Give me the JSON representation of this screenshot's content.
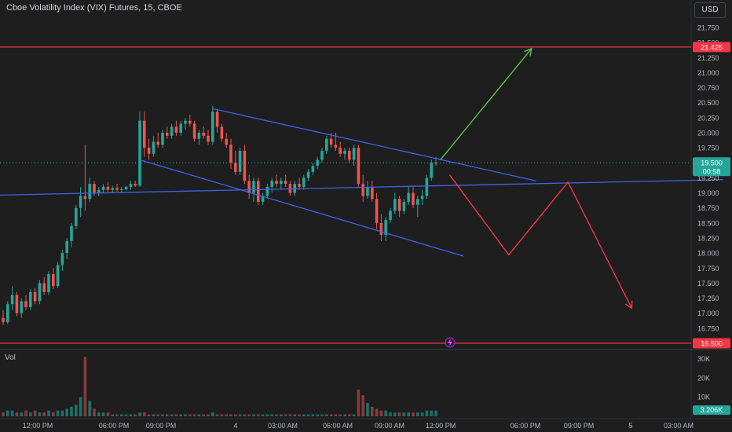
{
  "header": {
    "title": "Cboe Volatility Index (VIX) Futures, 15, CBOE",
    "currency_button": "USD",
    "volume_label": "Vol"
  },
  "colors": {
    "background": "#1e1e1e",
    "bull": "#26a69a",
    "bear": "#ef5350",
    "bull_volume": "#1f6f69",
    "bear_volume": "#8a3a3a",
    "trendline": "#3d63e8",
    "level_line": "#f23645",
    "arrow_up": "#5fbf4d",
    "arrow_down": "#f23645",
    "grid": "#2a2a2a",
    "axis_text": "#b2b5be"
  },
  "chart_data": [
    {
      "type": "candlestick",
      "title": "Cboe Volatility Index (VIX) Futures, 15, CBOE",
      "y_ticks": [
        "21.750",
        "21.500",
        "21.250",
        "21.000",
        "20.750",
        "20.500",
        "20.250",
        "20.000",
        "19.750",
        "19.500",
        "19.250",
        "19.000",
        "18.750",
        "18.500",
        "18.250",
        "18.000",
        "17.750",
        "17.500",
        "17.250",
        "17.000",
        "16.750"
      ],
      "ylim": [
        16.5,
        21.75
      ],
      "x_tick_labels": [
        "12:00 PM",
        "06:00 PM",
        "09:00 PM",
        "4",
        "03:00 AM",
        "06:00 AM",
        "09:00 AM",
        "12:00 PM",
        "06:00 PM",
        "09:00 PM",
        "5",
        "03:00 AM"
      ],
      "price_labels": {
        "upper_level": "21.425",
        "current_price": "19.500",
        "countdown": "00:58",
        "lower_level": "16.500"
      },
      "horizontal_levels": [
        21.425,
        16.5
      ],
      "current_price": 19.5,
      "candles": [
        {
          "o": 16.92,
          "h": 17.05,
          "l": 16.8,
          "c": 16.85
        },
        {
          "o": 16.85,
          "h": 17.2,
          "l": 16.82,
          "c": 17.15
        },
        {
          "o": 17.15,
          "h": 17.45,
          "l": 17.05,
          "c": 17.3
        },
        {
          "o": 17.3,
          "h": 17.35,
          "l": 16.95,
          "c": 17.0
        },
        {
          "o": 17.0,
          "h": 17.25,
          "l": 16.92,
          "c": 17.2
        },
        {
          "o": 17.2,
          "h": 17.3,
          "l": 17.05,
          "c": 17.1
        },
        {
          "o": 17.1,
          "h": 17.4,
          "l": 17.05,
          "c": 17.35
        },
        {
          "o": 17.35,
          "h": 17.42,
          "l": 17.15,
          "c": 17.2
        },
        {
          "o": 17.2,
          "h": 17.55,
          "l": 17.15,
          "c": 17.5
        },
        {
          "o": 17.5,
          "h": 17.6,
          "l": 17.3,
          "c": 17.35
        },
        {
          "o": 17.35,
          "h": 17.7,
          "l": 17.3,
          "c": 17.65
        },
        {
          "o": 17.65,
          "h": 17.75,
          "l": 17.4,
          "c": 17.45
        },
        {
          "o": 17.45,
          "h": 17.85,
          "l": 17.42,
          "c": 17.8
        },
        {
          "o": 17.8,
          "h": 18.05,
          "l": 17.7,
          "c": 18.0
        },
        {
          "o": 18.0,
          "h": 18.25,
          "l": 17.9,
          "c": 18.2
        },
        {
          "o": 18.2,
          "h": 18.5,
          "l": 18.1,
          "c": 18.45
        },
        {
          "o": 18.45,
          "h": 18.8,
          "l": 18.4,
          "c": 18.75
        },
        {
          "o": 18.75,
          "h": 19.1,
          "l": 18.6,
          "c": 18.95
        },
        {
          "o": 18.95,
          "h": 19.8,
          "l": 18.7,
          "c": 18.9
        },
        {
          "o": 18.9,
          "h": 19.25,
          "l": 18.85,
          "c": 19.15
        },
        {
          "o": 19.15,
          "h": 19.2,
          "l": 18.95,
          "c": 19.0
        },
        {
          "o": 19.0,
          "h": 19.1,
          "l": 18.95,
          "c": 19.05
        },
        {
          "o": 19.05,
          "h": 19.15,
          "l": 19.0,
          "c": 19.1
        },
        {
          "o": 19.1,
          "h": 19.18,
          "l": 19.02,
          "c": 19.05
        },
        {
          "o": 19.05,
          "h": 19.12,
          "l": 19.0,
          "c": 19.08
        },
        {
          "o": 19.08,
          "h": 19.15,
          "l": 19.02,
          "c": 19.05
        },
        {
          "o": 19.05,
          "h": 19.1,
          "l": 19.0,
          "c": 19.06
        },
        {
          "o": 19.06,
          "h": 19.12,
          "l": 19.04,
          "c": 19.1
        },
        {
          "o": 19.1,
          "h": 19.2,
          "l": 19.05,
          "c": 19.15
        },
        {
          "o": 19.15,
          "h": 19.2,
          "l": 19.1,
          "c": 19.12
        },
        {
          "o": 19.12,
          "h": 20.35,
          "l": 19.1,
          "c": 20.2
        },
        {
          "o": 20.2,
          "h": 20.35,
          "l": 19.6,
          "c": 19.75
        },
        {
          "o": 19.75,
          "h": 19.9,
          "l": 19.55,
          "c": 19.65
        },
        {
          "o": 19.65,
          "h": 19.95,
          "l": 19.6,
          "c": 19.85
        },
        {
          "o": 19.85,
          "h": 20.0,
          "l": 19.75,
          "c": 19.8
        },
        {
          "o": 19.8,
          "h": 20.05,
          "l": 19.75,
          "c": 20.0
        },
        {
          "o": 20.0,
          "h": 20.1,
          "l": 19.9,
          "c": 19.95
        },
        {
          "o": 19.95,
          "h": 20.15,
          "l": 19.9,
          "c": 20.1
        },
        {
          "o": 20.1,
          "h": 20.2,
          "l": 19.95,
          "c": 20.0
        },
        {
          "o": 20.0,
          "h": 20.2,
          "l": 19.95,
          "c": 20.15
        },
        {
          "o": 20.15,
          "h": 20.25,
          "l": 20.05,
          "c": 20.2
        },
        {
          "o": 20.2,
          "h": 20.3,
          "l": 20.1,
          "c": 20.15
        },
        {
          "o": 20.15,
          "h": 20.2,
          "l": 19.85,
          "c": 19.9
        },
        {
          "o": 19.9,
          "h": 20.05,
          "l": 19.8,
          "c": 20.0
        },
        {
          "o": 20.0,
          "h": 20.1,
          "l": 19.9,
          "c": 19.95
        },
        {
          "o": 19.95,
          "h": 20.05,
          "l": 19.8,
          "c": 19.85
        },
        {
          "o": 19.85,
          "h": 20.45,
          "l": 19.8,
          "c": 20.35
        },
        {
          "o": 20.35,
          "h": 20.4,
          "l": 20.0,
          "c": 20.1
        },
        {
          "o": 20.1,
          "h": 20.15,
          "l": 19.85,
          "c": 19.9
        },
        {
          "o": 19.9,
          "h": 20.0,
          "l": 19.75,
          "c": 19.8
        },
        {
          "o": 19.8,
          "h": 19.9,
          "l": 19.4,
          "c": 19.5
        },
        {
          "o": 19.5,
          "h": 19.7,
          "l": 19.3,
          "c": 19.35
        },
        {
          "o": 19.35,
          "h": 19.75,
          "l": 19.3,
          "c": 19.7
        },
        {
          "o": 19.7,
          "h": 19.8,
          "l": 19.15,
          "c": 19.2
        },
        {
          "o": 19.2,
          "h": 19.3,
          "l": 18.9,
          "c": 19.0
        },
        {
          "o": 19.0,
          "h": 19.25,
          "l": 18.85,
          "c": 19.2
        },
        {
          "o": 19.2,
          "h": 19.25,
          "l": 18.8,
          "c": 18.85
        },
        {
          "o": 18.85,
          "h": 19.0,
          "l": 18.8,
          "c": 18.95
        },
        {
          "o": 18.95,
          "h": 19.15,
          "l": 18.9,
          "c": 19.1
        },
        {
          "o": 19.1,
          "h": 19.25,
          "l": 19.0,
          "c": 19.2
        },
        {
          "o": 19.2,
          "h": 19.3,
          "l": 19.1,
          "c": 19.15
        },
        {
          "o": 19.15,
          "h": 19.25,
          "l": 19.05,
          "c": 19.2
        },
        {
          "o": 19.2,
          "h": 19.3,
          "l": 19.1,
          "c": 19.15
        },
        {
          "o": 19.15,
          "h": 19.2,
          "l": 18.95,
          "c": 19.0
        },
        {
          "o": 19.0,
          "h": 19.2,
          "l": 18.95,
          "c": 19.15
        },
        {
          "o": 19.15,
          "h": 19.25,
          "l": 19.05,
          "c": 19.1
        },
        {
          "o": 19.1,
          "h": 19.3,
          "l": 19.05,
          "c": 19.25
        },
        {
          "o": 19.25,
          "h": 19.4,
          "l": 19.2,
          "c": 19.35
        },
        {
          "o": 19.35,
          "h": 19.5,
          "l": 19.3,
          "c": 19.45
        },
        {
          "o": 19.45,
          "h": 19.6,
          "l": 19.4,
          "c": 19.55
        },
        {
          "o": 19.55,
          "h": 19.75,
          "l": 19.5,
          "c": 19.7
        },
        {
          "o": 19.7,
          "h": 19.95,
          "l": 19.65,
          "c": 19.9
        },
        {
          "o": 19.9,
          "h": 20.0,
          "l": 19.75,
          "c": 19.8
        },
        {
          "o": 19.8,
          "h": 20.0,
          "l": 19.7,
          "c": 19.75
        },
        {
          "o": 19.75,
          "h": 19.85,
          "l": 19.6,
          "c": 19.65
        },
        {
          "o": 19.65,
          "h": 19.75,
          "l": 19.55,
          "c": 19.7
        },
        {
          "o": 19.7,
          "h": 19.75,
          "l": 19.5,
          "c": 19.55
        },
        {
          "o": 19.55,
          "h": 19.8,
          "l": 19.45,
          "c": 19.75
        },
        {
          "o": 19.75,
          "h": 19.8,
          "l": 19.1,
          "c": 19.15
        },
        {
          "o": 19.15,
          "h": 19.3,
          "l": 18.85,
          "c": 18.95
        },
        {
          "o": 18.95,
          "h": 19.2,
          "l": 18.9,
          "c": 19.1
        },
        {
          "o": 19.1,
          "h": 19.2,
          "l": 18.85,
          "c": 18.9
        },
        {
          "o": 18.9,
          "h": 19.0,
          "l": 18.4,
          "c": 18.5
        },
        {
          "o": 18.5,
          "h": 18.65,
          "l": 18.2,
          "c": 18.3
        },
        {
          "o": 18.3,
          "h": 18.6,
          "l": 18.2,
          "c": 18.55
        },
        {
          "o": 18.55,
          "h": 18.75,
          "l": 18.5,
          "c": 18.7
        },
        {
          "o": 18.7,
          "h": 19.0,
          "l": 18.65,
          "c": 18.9
        },
        {
          "o": 18.9,
          "h": 18.95,
          "l": 18.6,
          "c": 18.7
        },
        {
          "o": 18.7,
          "h": 18.9,
          "l": 18.65,
          "c": 18.85
        },
        {
          "o": 18.85,
          "h": 19.1,
          "l": 18.8,
          "c": 19.0
        },
        {
          "o": 19.0,
          "h": 19.1,
          "l": 18.75,
          "c": 18.8
        },
        {
          "o": 18.8,
          "h": 18.95,
          "l": 18.6,
          "c": 18.9
        },
        {
          "o": 18.9,
          "h": 19.05,
          "l": 18.8,
          "c": 18.95
        },
        {
          "o": 18.95,
          "h": 19.3,
          "l": 18.9,
          "c": 19.25
        },
        {
          "o": 19.25,
          "h": 19.55,
          "l": 19.2,
          "c": 19.5
        },
        {
          "o": 19.5,
          "h": 19.6,
          "l": 19.45,
          "c": 19.5
        }
      ],
      "volume": {
        "y_ticks": [
          "30K",
          "20K",
          "10K"
        ],
        "ylim": [
          0,
          32
        ],
        "current_volume": "3.206K",
        "values": [
          2,
          3,
          3,
          2,
          2,
          3,
          2,
          3,
          2,
          2,
          3,
          2,
          3,
          3,
          4,
          5,
          6,
          10,
          31,
          8,
          4,
          2,
          2,
          2,
          1,
          1,
          1,
          1,
          1,
          1,
          2,
          2,
          1,
          1,
          1,
          1,
          1,
          1,
          1,
          1,
          1,
          1,
          1,
          1,
          1,
          1,
          2,
          1,
          1,
          1,
          1,
          1,
          1,
          1,
          1,
          1,
          1,
          1,
          1,
          1,
          1,
          1,
          1,
          1,
          1,
          1,
          1,
          1,
          1,
          1,
          1,
          1,
          1,
          1,
          1,
          1,
          1,
          1,
          14,
          11,
          7,
          5,
          4,
          3,
          3,
          2,
          2,
          2,
          2,
          2,
          2,
          2,
          2,
          3,
          3,
          3
        ]
      },
      "trendlines": [
        {
          "name": "channel-upper",
          "from": {
            "bar": 46,
            "price": 20.4
          },
          "to": {
            "bar": 117,
            "price": 19.2
          }
        },
        {
          "name": "channel-lower",
          "from": {
            "bar": 30,
            "price": 19.55
          },
          "to": {
            "bar": 101,
            "price": 17.95
          }
        },
        {
          "name": "support-line",
          "from": {
            "bar": -15,
            "price": 18.94
          },
          "to": {
            "bar": 158,
            "price": 19.22
          }
        }
      ],
      "projections": {
        "bullish": [
          {
            "bar": 96,
            "price": 19.55
          },
          {
            "bar": 116,
            "price": 21.4
          }
        ],
        "bearish": [
          {
            "bar": 98,
            "price": 19.3
          },
          {
            "bar": 111,
            "price": 17.97
          },
          {
            "bar": 124,
            "price": 19.18
          },
          {
            "bar": 138,
            "price": 17.08
          }
        ]
      }
    }
  ]
}
